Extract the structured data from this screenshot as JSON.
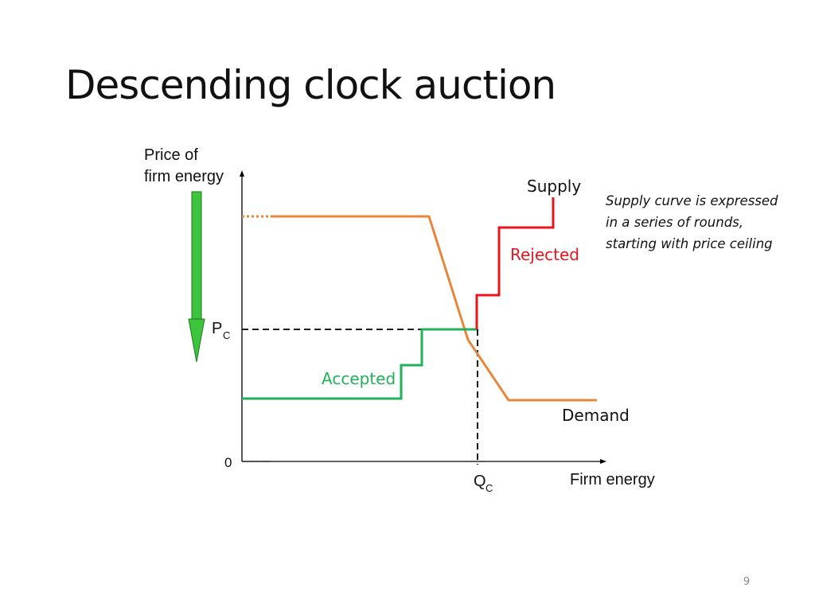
{
  "slide": {
    "title": "Descending clock auction",
    "page_number": "9"
  },
  "axes": {
    "y_label_line1": "Price of",
    "y_label_line2": "firm energy",
    "x_label": "Firm energy",
    "origin_label": "0",
    "pc_main": "P",
    "pc_sub": "C",
    "qc_main": "Q",
    "qc_sub": "C"
  },
  "curves": {
    "supply_label": "Supply",
    "demand_label": "Demand",
    "rejected_label": "Rejected",
    "accepted_label": "Accepted"
  },
  "note": {
    "line1": "Supply curve is expressed",
    "line2": "in a series of rounds,",
    "line3": "starting with price ceiling"
  },
  "colors": {
    "demand": "#E8873A",
    "accepted": "#22B05A",
    "rejected": "#E8141E",
    "arrow_fill": "#3CC43C",
    "arrow_stroke": "#1F7A1F",
    "axis": "#000000"
  }
}
